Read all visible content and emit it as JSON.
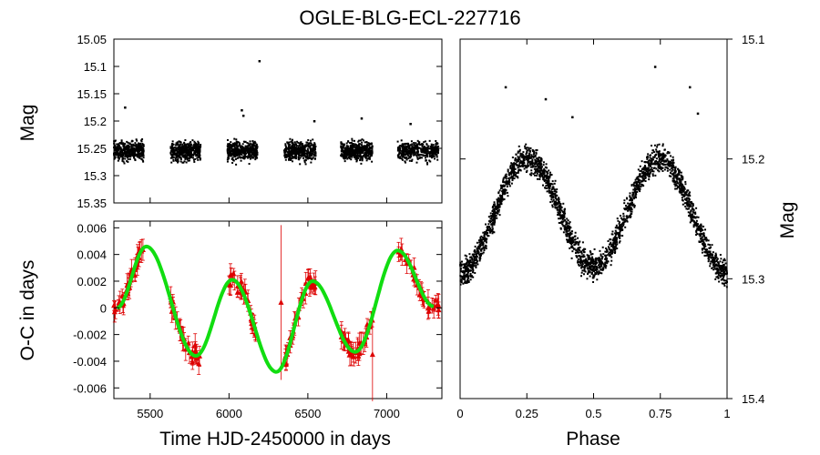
{
  "chart_data": {
    "type": "scatter",
    "title": "OGLE-BLG-ECL-227716",
    "panels": [
      {
        "id": "lightcurve",
        "type": "scatter",
        "xlabel": "",
        "ylabel": "Mag",
        "xlim": [
          5270,
          7350
        ],
        "ylim": [
          15.35,
          15.05
        ],
        "yticks": [
          "15.05",
          "15.1",
          "15.15",
          "15.2",
          "15.25",
          "15.3",
          "15.35"
        ],
        "seasons": [
          {
            "start": 5270,
            "end": 5460
          },
          {
            "start": 5630,
            "end": 5820
          },
          {
            "start": 5990,
            "end": 6180
          },
          {
            "start": 6350,
            "end": 6550
          },
          {
            "start": 6710,
            "end": 6910
          },
          {
            "start": 7070,
            "end": 7330
          }
        ],
        "mean_mag": 15.255,
        "mag_spread": 0.028,
        "outliers": [
          {
            "x": 5340,
            "y": 15.175
          },
          {
            "x": 6192,
            "y": 15.09
          },
          {
            "x": 6080,
            "y": 15.18
          },
          {
            "x": 6090,
            "y": 15.19
          },
          {
            "x": 6540,
            "y": 15.2
          },
          {
            "x": 6840,
            "y": 15.195
          },
          {
            "x": 7150,
            "y": 15.205
          }
        ],
        "color": "#000000"
      },
      {
        "id": "oc",
        "type": "scatter+line",
        "xlabel": "Time HJD-2450000 in days",
        "ylabel": "O-C in days",
        "xlim": [
          5270,
          7350
        ],
        "ylim": [
          -0.0068,
          0.0065
        ],
        "xticks": [
          "5500",
          "6000",
          "6500",
          "7000"
        ],
        "yticks": [
          "0.006",
          "0.004",
          "0.002",
          "0",
          "-0.002",
          "-0.004",
          "-0.006"
        ],
        "points_color": "#dd0000",
        "fit_color": "#11dd11",
        "fit_anchors": {
          "x": [
            5290,
            5475,
            5790,
            6020,
            6300,
            6530,
            6800,
            7070,
            7300
          ],
          "y": [
            0.0,
            0.0046,
            -0.0036,
            0.0021,
            -0.0048,
            0.002,
            -0.0033,
            0.0043,
            0.0001
          ]
        },
        "observed_windows": [
          [
            5270,
            5460
          ],
          [
            5630,
            5820
          ],
          [
            5990,
            6180
          ],
          [
            6350,
            6550
          ],
          [
            6710,
            6910
          ],
          [
            7070,
            7330
          ]
        ],
        "error_bar": 0.0006,
        "outlier_error_bars": [
          {
            "x": 6330,
            "y": 0.0004,
            "err": 0.0058
          },
          {
            "x": 6910,
            "y": -0.0035,
            "err": 0.0035
          }
        ]
      },
      {
        "id": "phased",
        "type": "scatter",
        "xlabel": "Phase",
        "ylabel": "Mag",
        "xlim": [
          0,
          1
        ],
        "ylim": [
          15.4,
          15.1
        ],
        "xticks": [
          "0",
          "0.25",
          "0.5",
          "0.75",
          "1"
        ],
        "yticks": [
          "15.1",
          "15.2",
          "15.3",
          "15.4"
        ],
        "max_mag": 15.2,
        "min_mag_primary": 15.295,
        "min_mag_secondary": 15.29,
        "color": "#000000"
      }
    ]
  }
}
